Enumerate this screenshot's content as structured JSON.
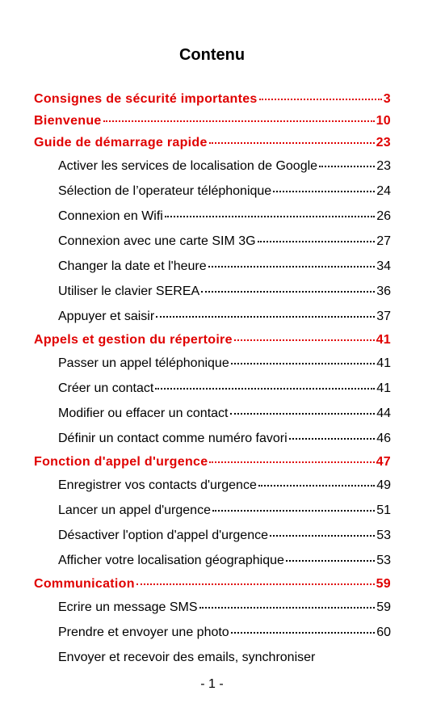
{
  "header": {
    "title": "Contenu"
  },
  "sections": [
    {
      "title": "Consignes de sécurité importantes",
      "page": "3",
      "items": []
    },
    {
      "title": "Bienvenue",
      "page": "10",
      "items": []
    },
    {
      "title": "Guide de démarrage rapide",
      "page": "23",
      "items": [
        {
          "title": "Activer les services de localisation de Google",
          "page": "23"
        },
        {
          "title": "Sélection de l’operateur téléphonique",
          "page": "24"
        },
        {
          "title": "Connexion en Wifi",
          "page": "26"
        },
        {
          "title": "Connexion avec une carte SIM 3G",
          "page": "27"
        },
        {
          "title": "Changer la date et l'heure",
          "page": "34"
        },
        {
          "title": "Utiliser le clavier SEREA",
          "page": "36"
        },
        {
          "title": "Appuyer et saisir",
          "page": "37"
        }
      ]
    },
    {
      "title": "Appels et gestion du répertoire",
      "page": "41",
      "items": [
        {
          "title": "Passer un appel téléphonique",
          "page": "41"
        },
        {
          "title": "Créer un contact",
          "page": "41"
        },
        {
          "title": "Modifier ou effacer un contact",
          "page": "44"
        },
        {
          "title": "Définir un contact comme numéro favori",
          "page": "46"
        }
      ]
    },
    {
      "title": "Fonction d'appel d'urgence",
      "page": "47",
      "items": [
        {
          "title": "Enregistrer vos contacts d'urgence",
          "page": "49"
        },
        {
          "title": "Lancer un appel d'urgence",
          "page": "51"
        },
        {
          "title": "Désactiver l'option d'appel d'urgence",
          "page": "53"
        },
        {
          "title": "Afficher votre localisation géographique",
          "page": "53"
        }
      ]
    },
    {
      "title": "Communication",
      "page": "59",
      "items": [
        {
          "title": "Ecrire un message SMS",
          "page": "59"
        },
        {
          "title": "Prendre et envoyer une photo",
          "page": "60"
        },
        {
          "title": "Envoyer et recevoir des emails, synchroniser"
        }
      ]
    }
  ],
  "footer": {
    "page_number": "- 1 -"
  }
}
